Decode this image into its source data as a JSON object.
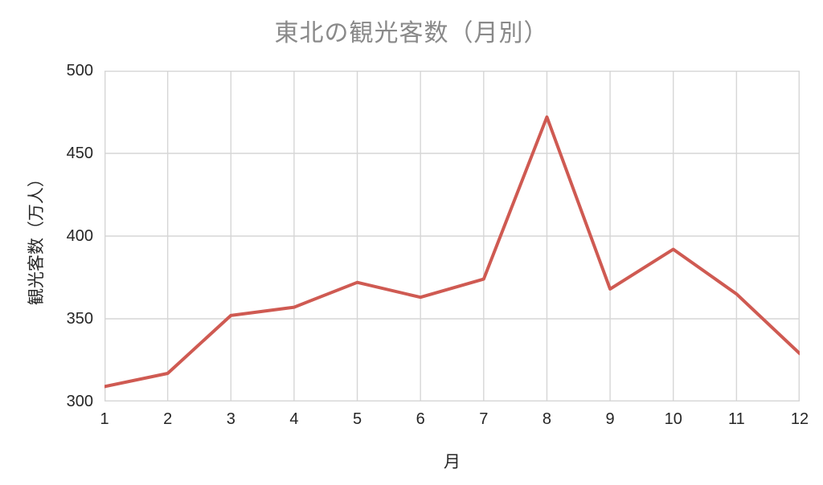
{
  "chart_data": {
    "type": "line",
    "title": "東北の観光客数（月別）",
    "xlabel": "月",
    "ylabel": "観光客数（万人）",
    "categories": [
      "1",
      "2",
      "3",
      "4",
      "5",
      "6",
      "7",
      "8",
      "9",
      "10",
      "11",
      "12"
    ],
    "series": [
      {
        "name": "観光客数",
        "values": [
          309,
          317,
          352,
          357,
          372,
          363,
          374,
          472,
          368,
          392,
          365,
          329
        ]
      }
    ],
    "ylim": [
      300,
      500
    ],
    "y_ticks": [
      300,
      350,
      400,
      450,
      500
    ],
    "grid": true,
    "legend": "none"
  },
  "colors": {
    "line": "#cf5a52",
    "grid": "#d6d6d6",
    "title_text": "#898989",
    "tick_text": "#262626",
    "background": "#ffffff"
  }
}
